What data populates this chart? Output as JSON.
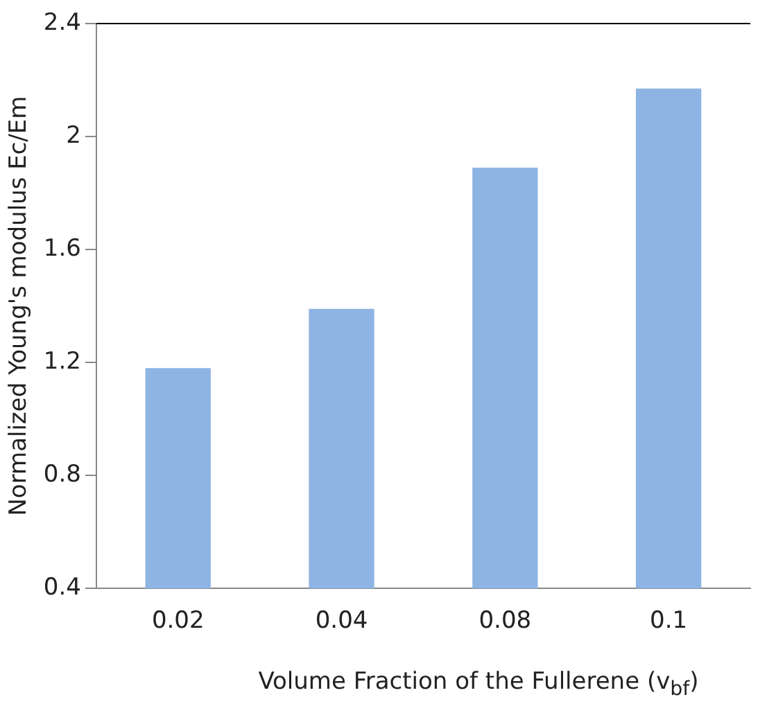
{
  "chart_data": {
    "type": "bar",
    "xlabel": "Volume Fraction of the Fullerene (v$_{bf}$)",
    "ylabel": "Normalized Young's modulus Ec/Em",
    "categories": [
      "0.02",
      "0.04",
      "0.08",
      "0.1"
    ],
    "values": [
      1.18,
      1.39,
      1.89,
      2.17
    ],
    "color": "#8eb4e3",
    "ylim": [
      0.4,
      2.4
    ],
    "yticks": [
      0.4,
      0.8,
      1.2,
      1.6,
      2,
      2.4
    ],
    "grid": false,
    "legend": false
  }
}
